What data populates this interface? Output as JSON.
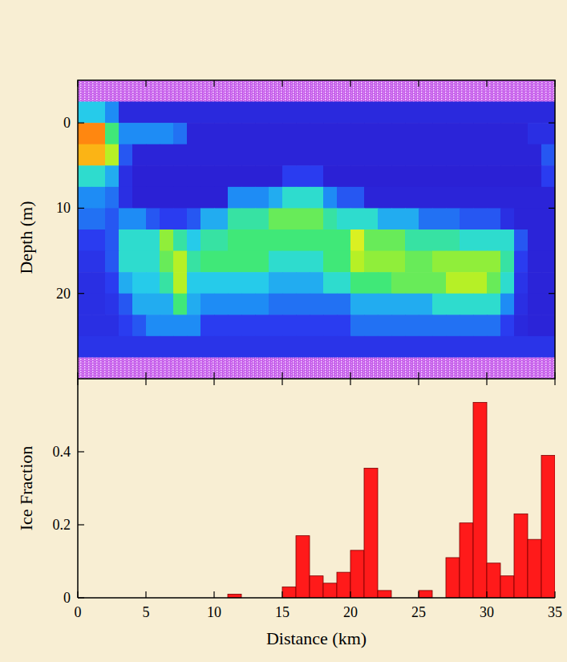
{
  "chart_data": [
    {
      "type": "heatmap",
      "ylabel": "Depth (m)",
      "xlim": [
        0,
        35
      ],
      "ylim": [
        30,
        -5
      ],
      "xticks": [
        0,
        5,
        10,
        15,
        20,
        25,
        30,
        35
      ],
      "yticks": [
        0,
        10,
        20
      ],
      "tick_labels": "y",
      "zlim": [
        0,
        1
      ],
      "x_edges": [
        0,
        1,
        2,
        3,
        4,
        5,
        6,
        7,
        8,
        9,
        10,
        11,
        12,
        13,
        14,
        15,
        16,
        17,
        18,
        19,
        20,
        21,
        22,
        23,
        24,
        25,
        26,
        27,
        28,
        29,
        30,
        31,
        32,
        33,
        34,
        35
      ],
      "y_edges": [
        -5,
        -2.5,
        0,
        2.5,
        5,
        7.5,
        10,
        12.5,
        15,
        17.5,
        20,
        22.5,
        25,
        27.5,
        30
      ],
      "cells": [
        [
          null,
          null,
          null,
          null,
          null,
          null,
          null,
          null,
          null,
          null,
          null,
          null,
          null,
          null,
          null,
          null,
          null,
          null,
          null,
          null,
          null,
          null,
          null,
          null,
          null,
          null,
          null,
          null,
          null,
          null,
          null,
          null,
          null,
          null,
          null
        ],
        [
          0.4,
          0.4,
          0.3,
          0.08,
          0.08,
          0.08,
          0.08,
          0.08,
          0.08,
          0.08,
          0.08,
          0.08,
          0.08,
          0.08,
          0.08,
          0.08,
          0.08,
          0.08,
          0.08,
          0.08,
          0.08,
          0.08,
          0.08,
          0.08,
          0.08,
          0.08,
          0.08,
          0.08,
          0.08,
          0.08,
          0.08,
          0.08,
          0.08,
          0.08,
          0.08
        ],
        [
          0.9,
          0.9,
          0.55,
          0.3,
          0.3,
          0.3,
          0.3,
          0.25,
          0.06,
          0.06,
          0.06,
          0.06,
          0.06,
          0.06,
          0.06,
          0.06,
          0.06,
          0.06,
          0.06,
          0.06,
          0.06,
          0.06,
          0.06,
          0.06,
          0.06,
          0.06,
          0.06,
          0.06,
          0.06,
          0.06,
          0.06,
          0.06,
          0.06,
          0.1,
          0.1
        ],
        [
          0.85,
          0.85,
          0.7,
          0.2,
          0.06,
          0.06,
          0.06,
          0.06,
          0.06,
          0.06,
          0.06,
          0.06,
          0.06,
          0.06,
          0.06,
          0.06,
          0.06,
          0.06,
          0.06,
          0.06,
          0.06,
          0.06,
          0.06,
          0.06,
          0.06,
          0.06,
          0.06,
          0.06,
          0.06,
          0.06,
          0.06,
          0.06,
          0.06,
          0.06,
          0.2
        ],
        [
          0.45,
          0.45,
          0.35,
          0.1,
          0.05,
          0.05,
          0.05,
          0.05,
          0.05,
          0.05,
          0.05,
          0.05,
          0.05,
          0.05,
          0.05,
          0.15,
          0.15,
          0.15,
          0.05,
          0.05,
          0.05,
          0.05,
          0.05,
          0.05,
          0.05,
          0.05,
          0.05,
          0.05,
          0.05,
          0.05,
          0.05,
          0.05,
          0.05,
          0.05,
          0.15
        ],
        [
          0.3,
          0.3,
          0.25,
          0.1,
          0.05,
          0.05,
          0.05,
          0.05,
          0.05,
          0.05,
          0.05,
          0.3,
          0.3,
          0.3,
          0.35,
          0.45,
          0.45,
          0.45,
          0.3,
          0.2,
          0.2,
          0.06,
          0.06,
          0.06,
          0.06,
          0.06,
          0.06,
          0.06,
          0.06,
          0.06,
          0.06,
          0.06,
          0.06,
          0.06,
          0.06
        ],
        [
          0.25,
          0.25,
          0.2,
          0.3,
          0.3,
          0.2,
          0.15,
          0.15,
          0.2,
          0.35,
          0.35,
          0.5,
          0.5,
          0.5,
          0.6,
          0.6,
          0.6,
          0.6,
          0.5,
          0.45,
          0.45,
          0.45,
          0.35,
          0.35,
          0.35,
          0.25,
          0.25,
          0.25,
          0.2,
          0.2,
          0.2,
          0.1,
          0.06,
          0.06,
          0.06
        ],
        [
          0.15,
          0.15,
          0.2,
          0.45,
          0.45,
          0.45,
          0.65,
          0.5,
          0.4,
          0.5,
          0.5,
          0.55,
          0.55,
          0.55,
          0.55,
          0.55,
          0.55,
          0.55,
          0.55,
          0.55,
          0.75,
          0.6,
          0.6,
          0.6,
          0.5,
          0.5,
          0.5,
          0.5,
          0.45,
          0.45,
          0.45,
          0.45,
          0.2,
          0.06,
          0.06
        ],
        [
          0.12,
          0.12,
          0.2,
          0.45,
          0.45,
          0.45,
          0.6,
          0.7,
          0.5,
          0.55,
          0.55,
          0.55,
          0.55,
          0.55,
          0.45,
          0.45,
          0.45,
          0.45,
          0.55,
          0.55,
          0.7,
          0.65,
          0.65,
          0.65,
          0.6,
          0.6,
          0.65,
          0.65,
          0.65,
          0.65,
          0.65,
          0.5,
          0.15,
          0.06,
          0.06
        ],
        [
          0.1,
          0.1,
          0.15,
          0.35,
          0.4,
          0.4,
          0.5,
          0.7,
          0.4,
          0.4,
          0.4,
          0.4,
          0.4,
          0.4,
          0.35,
          0.35,
          0.35,
          0.35,
          0.45,
          0.45,
          0.55,
          0.55,
          0.55,
          0.6,
          0.6,
          0.6,
          0.6,
          0.7,
          0.7,
          0.7,
          0.6,
          0.45,
          0.12,
          0.06,
          0.06
        ],
        [
          0.1,
          0.1,
          0.12,
          0.2,
          0.35,
          0.35,
          0.35,
          0.55,
          0.35,
          0.3,
          0.3,
          0.3,
          0.3,
          0.3,
          0.25,
          0.25,
          0.25,
          0.25,
          0.25,
          0.25,
          0.35,
          0.35,
          0.35,
          0.35,
          0.35,
          0.35,
          0.45,
          0.45,
          0.45,
          0.45,
          0.45,
          0.3,
          0.1,
          0.06,
          0.06
        ],
        [
          0.1,
          0.1,
          0.1,
          0.15,
          0.2,
          0.3,
          0.3,
          0.3,
          0.3,
          0.15,
          0.15,
          0.15,
          0.15,
          0.15,
          0.15,
          0.15,
          0.15,
          0.15,
          0.15,
          0.15,
          0.25,
          0.25,
          0.25,
          0.25,
          0.25,
          0.25,
          0.25,
          0.25,
          0.25,
          0.25,
          0.25,
          0.15,
          0.08,
          0.06,
          0.06
        ],
        [
          0.12,
          0.12,
          0.12,
          0.12,
          0.12,
          0.12,
          0.12,
          0.12,
          0.12,
          0.12,
          0.12,
          0.12,
          0.12,
          0.12,
          0.12,
          0.12,
          0.12,
          0.12,
          0.12,
          0.12,
          0.12,
          0.12,
          0.12,
          0.12,
          0.12,
          0.12,
          0.12,
          0.12,
          0.12,
          0.12,
          0.12,
          0.12,
          0.12,
          0.12,
          0.12
        ],
        [
          null,
          null,
          null,
          null,
          null,
          null,
          null,
          null,
          null,
          null,
          null,
          null,
          null,
          null,
          null,
          null,
          null,
          null,
          null,
          null,
          null,
          null,
          null,
          null,
          null,
          null,
          null,
          null,
          null,
          null,
          null,
          null,
          null,
          null,
          null
        ]
      ]
    },
    {
      "type": "histogram",
      "xlabel": "Distance (km)",
      "ylabel": "Ice Fraction",
      "color": "#ff1a1a",
      "xlim": [
        0,
        35
      ],
      "ylim": [
        0,
        0.6
      ],
      "xticks": [
        0,
        5,
        10,
        15,
        20,
        25,
        30,
        35
      ],
      "yticks": [
        0,
        0.2,
        0.4
      ],
      "bins": [
        0,
        1,
        2,
        3,
        4,
        5,
        6,
        7,
        8,
        9,
        10,
        11,
        12,
        13,
        14,
        15,
        16,
        17,
        18,
        19,
        20,
        21,
        22,
        23,
        24,
        25,
        26,
        27,
        28,
        29,
        30,
        31,
        32,
        33,
        34,
        35
      ],
      "counts": [
        0,
        0,
        0,
        0,
        0,
        0,
        0,
        0,
        0,
        0,
        0,
        0.01,
        0,
        0,
        0,
        0.03,
        0.17,
        0.06,
        0.04,
        0.07,
        0.13,
        0.355,
        0.02,
        0,
        0,
        0.02,
        0,
        0.11,
        0.205,
        0.535,
        0.095,
        0.06,
        0.23,
        0.16,
        0.39
      ]
    }
  ]
}
